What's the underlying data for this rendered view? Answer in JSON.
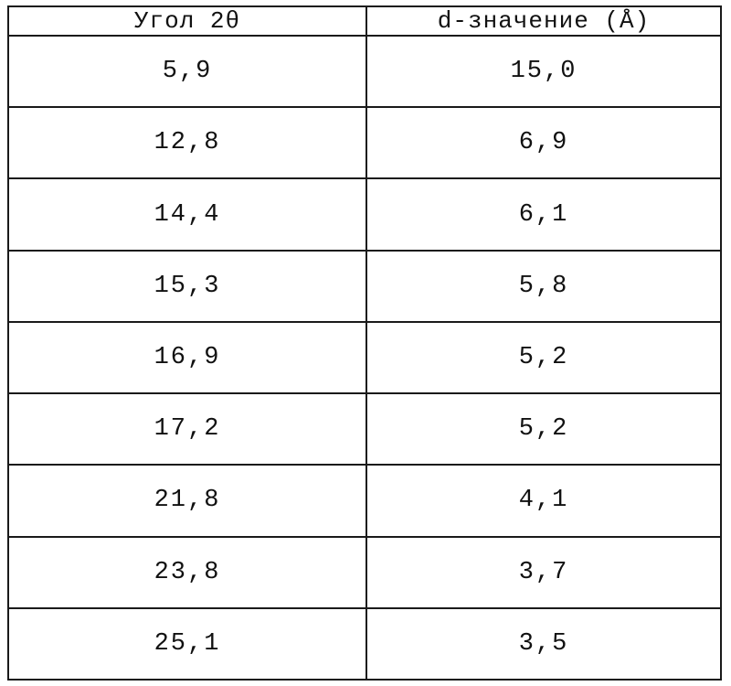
{
  "table": {
    "headers": [
      "Угол 2θ",
      "d-значение (Å)"
    ],
    "rows": [
      [
        "5,9",
        "15,0"
      ],
      [
        "12,8",
        "6,9"
      ],
      [
        "14,4",
        "6,1"
      ],
      [
        "15,3",
        "5,8"
      ],
      [
        "16,9",
        "5,2"
      ],
      [
        "17,2",
        "5,2"
      ],
      [
        "21,8",
        "4,1"
      ],
      [
        "23,8",
        "3,7"
      ],
      [
        "25,1",
        "3,5"
      ]
    ]
  }
}
